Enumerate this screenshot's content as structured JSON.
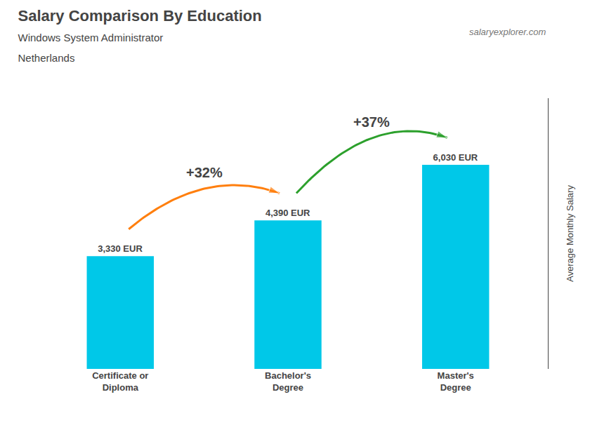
{
  "chart_data": {
    "type": "bar",
    "title": "Salary Comparison By Education",
    "subtitle": [
      "Windows System Administrator",
      "Netherlands"
    ],
    "source": "salaryexplorer.com",
    "ylabel": "Average Monthly Salary",
    "categories": [
      "Certificate or\nDiploma",
      "Bachelor's\nDegree",
      "Master's\nDegree"
    ],
    "values": [
      3330,
      4390,
      6030
    ],
    "value_labels": [
      "3,330 EUR",
      "4,390 EUR",
      "6,030 EUR"
    ],
    "data_labels": true,
    "annotations": [
      "+32%",
      "+37%"
    ],
    "color": "#00c8e8",
    "ylim": [
      0,
      8000
    ],
    "yticks": [],
    "grid": false,
    "tick_labels": "x"
  }
}
